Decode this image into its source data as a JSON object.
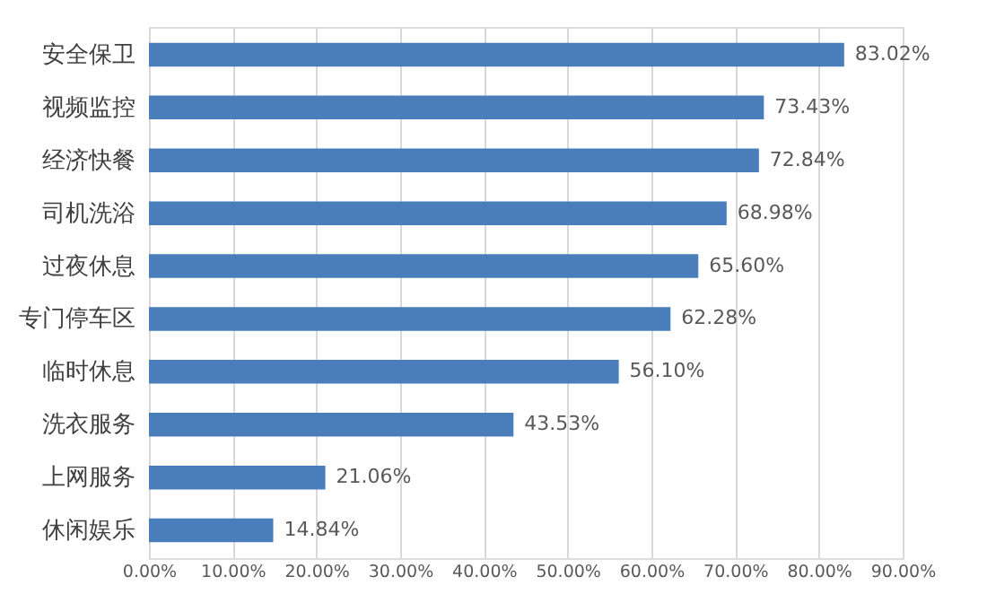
{
  "chart_data": {
    "type": "bar",
    "orientation": "horizontal",
    "categories": [
      "安全保卫",
      "视频监控",
      "经济快餐",
      "司机洗浴",
      "过夜休息",
      "专门停车区",
      "临时休息",
      "洗衣服务",
      "上网服务",
      "休闲娱乐"
    ],
    "values": [
      83.02,
      73.43,
      72.84,
      68.98,
      65.6,
      62.28,
      56.1,
      43.53,
      21.06,
      14.84
    ],
    "value_labels": [
      "83.02%",
      "73.43%",
      "72.84%",
      "68.98%",
      "65.60%",
      "62.28%",
      "56.10%",
      "43.53%",
      "21.06%",
      "14.84%"
    ],
    "color": "#4a7ebb",
    "xlim": [
      0,
      90
    ],
    "xticks": [
      {
        "value": 0,
        "label": "0.00%"
      },
      {
        "value": 10,
        "label": "10.00%"
      },
      {
        "value": 20,
        "label": "20.00%"
      },
      {
        "value": 30,
        "label": "30.00%"
      },
      {
        "value": 40,
        "label": "40.00%"
      },
      {
        "value": 50,
        "label": "50.00%"
      },
      {
        "value": 60,
        "label": "60.00%"
      },
      {
        "value": 70,
        "label": "70.00%"
      },
      {
        "value": 80,
        "label": "80.00%"
      },
      {
        "value": 90,
        "label": "90.00%"
      }
    ],
    "grid": "x"
  }
}
